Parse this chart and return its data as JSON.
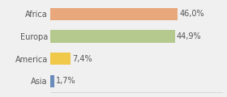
{
  "categories": [
    "Africa",
    "Europa",
    "America",
    "Asia"
  ],
  "values": [
    46.0,
    44.9,
    7.4,
    1.7
  ],
  "labels": [
    "46,0%",
    "44,9%",
    "7,4%",
    "1,7%"
  ],
  "bar_colors": [
    "#e8a87c",
    "#b5c98e",
    "#f0c84a",
    "#6b8cba"
  ],
  "background_color": "#f0f0f0",
  "xlim": [
    0,
    62
  ],
  "label_fontsize": 7,
  "tick_fontsize": 7,
  "bar_height": 0.55
}
